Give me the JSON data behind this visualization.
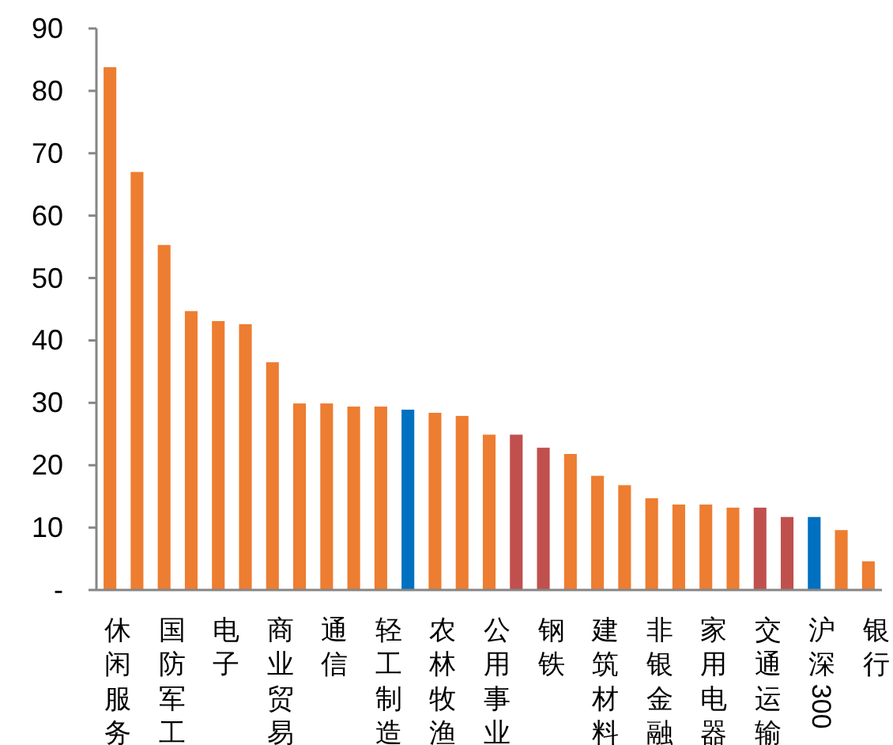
{
  "chart_data": {
    "type": "bar",
    "categories": [
      "休闲服务",
      null,
      "国防军工",
      null,
      "电子",
      null,
      "商业贸易",
      null,
      "通信",
      null,
      "轻工制造",
      null,
      "农林牧渔",
      null,
      "公用事业",
      null,
      "钢铁",
      null,
      "建筑材料",
      null,
      "非银金融",
      null,
      "家用电器",
      null,
      "交通运输",
      null,
      "沪深300",
      null,
      "银行"
    ],
    "values": [
      83.8,
      67.0,
      55.3,
      44.7,
      43.1,
      42.6,
      36.5,
      29.9,
      29.9,
      29.4,
      29.4,
      28.9,
      28.4,
      27.9,
      24.9,
      24.9,
      22.8,
      21.8,
      18.3,
      16.8,
      14.7,
      13.7,
      13.7,
      13.2,
      13.2,
      11.7,
      11.7,
      9.6,
      4.6
    ],
    "colors": [
      "#ed7d31",
      "#ed7d31",
      "#ed7d31",
      "#ed7d31",
      "#ed7d31",
      "#ed7d31",
      "#ed7d31",
      "#ed7d31",
      "#ed7d31",
      "#ed7d31",
      "#ed7d31",
      "#0070c0",
      "#ed7d31",
      "#ed7d31",
      "#ed7d31",
      "#c0504d",
      "#c0504d",
      "#ed7d31",
      "#ed7d31",
      "#ed7d31",
      "#ed7d31",
      "#ed7d31",
      "#ed7d31",
      "#ed7d31",
      "#c0504d",
      "#c0504d",
      "#0070c0",
      "#ed7d31",
      "#ed7d31"
    ],
    "ylim": [
      0,
      90
    ],
    "yticks": [
      {
        "value": 0,
        "label": "-"
      },
      10,
      20,
      30,
      40,
      50,
      60,
      70,
      80,
      90
    ],
    "grid": false
  }
}
